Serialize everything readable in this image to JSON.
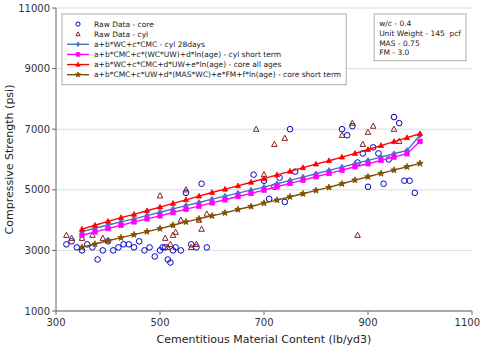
{
  "chart_data": {
    "type": "line",
    "xlabel": "Cementitious Material Content (lb/yd3)",
    "ylabel": "Compressive Strength (psi)",
    "xlim": [
      300,
      1100
    ],
    "ylim": [
      1000,
      11000
    ],
    "xticks": [
      300,
      500,
      700,
      900,
      1100
    ],
    "yticks": [
      1000,
      3000,
      5000,
      7000,
      9000,
      11000
    ],
    "grid": "y",
    "legend": "upper left",
    "annotation": "w/c - 0.4\nUnit Weight - 145  pcf\nMAS - 0.75\nFM - 3.0",
    "series": [
      {
        "name": "Raw Data - core",
        "type": "scatter",
        "marker": "circle",
        "color": "#0000cd",
        "x": [
          320,
          330,
          340,
          350,
          360,
          370,
          380,
          390,
          400,
          410,
          420,
          430,
          440,
          450,
          460,
          470,
          480,
          490,
          500,
          505,
          510,
          515,
          520,
          525,
          530,
          540,
          550,
          560,
          570,
          580,
          590,
          680,
          700,
          710,
          720,
          730,
          740,
          750,
          760,
          850,
          860,
          870,
          880,
          890,
          900,
          910,
          920,
          930,
          940,
          950,
          960,
          970,
          980,
          990
        ],
        "values": [
          3200,
          3300,
          3100,
          3000,
          3200,
          3100,
          2700,
          3000,
          3300,
          3000,
          3100,
          3200,
          3200,
          3100,
          3300,
          3000,
          3100,
          2800,
          3000,
          3100,
          3100,
          2700,
          2600,
          3000,
          3100,
          3000,
          4900,
          3200,
          3100,
          5200,
          3100,
          5500,
          5300,
          4700,
          5100,
          5400,
          4600,
          7000,
          5600,
          7000,
          6800,
          7100,
          5900,
          6200,
          5100,
          6400,
          6200,
          5200,
          6000,
          7400,
          7200,
          5300,
          5300,
          4900
        ]
      },
      {
        "name": "Raw Data - cyl",
        "type": "scatter",
        "marker": "triangle",
        "color": "#8b2020",
        "x": [
          320,
          330,
          350,
          370,
          390,
          500,
          510,
          515,
          520,
          525,
          530,
          540,
          550,
          560,
          570,
          575,
          580,
          590,
          685,
          700,
          720,
          740,
          850,
          870,
          880,
          890,
          900,
          910,
          950,
          960
        ],
        "values": [
          3500,
          3400,
          3400,
          3500,
          3400,
          4800,
          3400,
          3100,
          3200,
          3500,
          3600,
          4000,
          5000,
          3100,
          3200,
          4000,
          3700,
          4200,
          7000,
          5500,
          6500,
          6700,
          6800,
          7200,
          3500,
          6500,
          6900,
          7100,
          7000,
          6600
        ]
      },
      {
        "name": "a+b*WC+c*CMC - cyl 28days",
        "type": "line",
        "marker": "diamond",
        "color": "#4472c4",
        "x": [
          350,
          375,
          400,
          425,
          450,
          475,
          500,
          525,
          550,
          575,
          600,
          625,
          650,
          675,
          700,
          725,
          750,
          775,
          800,
          825,
          850,
          875,
          900,
          925,
          950,
          975,
          1000
        ],
        "values": [
          3620,
          3730,
          3840,
          3940,
          4040,
          4150,
          4260,
          4370,
          4480,
          4580,
          4690,
          4790,
          4890,
          4990,
          5090,
          5200,
          5310,
          5420,
          5530,
          5640,
          5750,
          5860,
          5970,
          6080,
          6190,
          6300,
          6800
        ]
      },
      {
        "name": "a+b*CMC+c*(WC*UW)+d*ln(age) - cyl short term",
        "type": "line",
        "marker": "square",
        "color": "#ff00ff",
        "x": [
          350,
          375,
          400,
          425,
          450,
          475,
          500,
          525,
          550,
          575,
          600,
          625,
          650,
          675,
          700,
          725,
          750,
          775,
          800,
          825,
          850,
          875,
          900,
          925,
          950,
          975,
          1000
        ],
        "values": [
          3500,
          3610,
          3720,
          3830,
          3940,
          4040,
          4140,
          4250,
          4360,
          4460,
          4570,
          4670,
          4780,
          4880,
          4990,
          5100,
          5210,
          5320,
          5430,
          5540,
          5650,
          5760,
          5860,
          5970,
          6080,
          6190,
          6600
        ]
      },
      {
        "name": "a+b*WC+c*CMC+d*UW+e*ln(age) - core all ages",
        "type": "line",
        "marker": "triangle",
        "color": "#ff0000",
        "x": [
          350,
          375,
          400,
          425,
          450,
          475,
          500,
          525,
          550,
          575,
          600,
          625,
          650,
          675,
          700,
          725,
          750,
          775,
          800,
          825,
          850,
          875,
          900,
          925,
          950,
          975,
          1000
        ],
        "values": [
          3700,
          3830,
          3960,
          4080,
          4190,
          4310,
          4430,
          4550,
          4670,
          4790,
          4910,
          5020,
          5130,
          5250,
          5370,
          5490,
          5610,
          5730,
          5850,
          5960,
          6080,
          6200,
          6330,
          6460,
          6590,
          6720,
          6850
        ]
      },
      {
        "name": "a+b*CMC+c*UW+d*(MAS*WC)+e*FM+f*ln(age) - core short term",
        "type": "line",
        "marker": "star",
        "color": "#7f4f00",
        "x": [
          350,
          375,
          400,
          425,
          450,
          475,
          500,
          525,
          550,
          575,
          600,
          625,
          650,
          675,
          700,
          725,
          750,
          775,
          800,
          825,
          850,
          875,
          900,
          925,
          950,
          975,
          1000
        ],
        "values": [
          3100,
          3210,
          3320,
          3420,
          3520,
          3620,
          3720,
          3830,
          3940,
          4040,
          4140,
          4240,
          4350,
          4450,
          4560,
          4660,
          4770,
          4870,
          4980,
          5080,
          5200,
          5320,
          5430,
          5540,
          5650,
          5760,
          5870
        ]
      }
    ]
  }
}
